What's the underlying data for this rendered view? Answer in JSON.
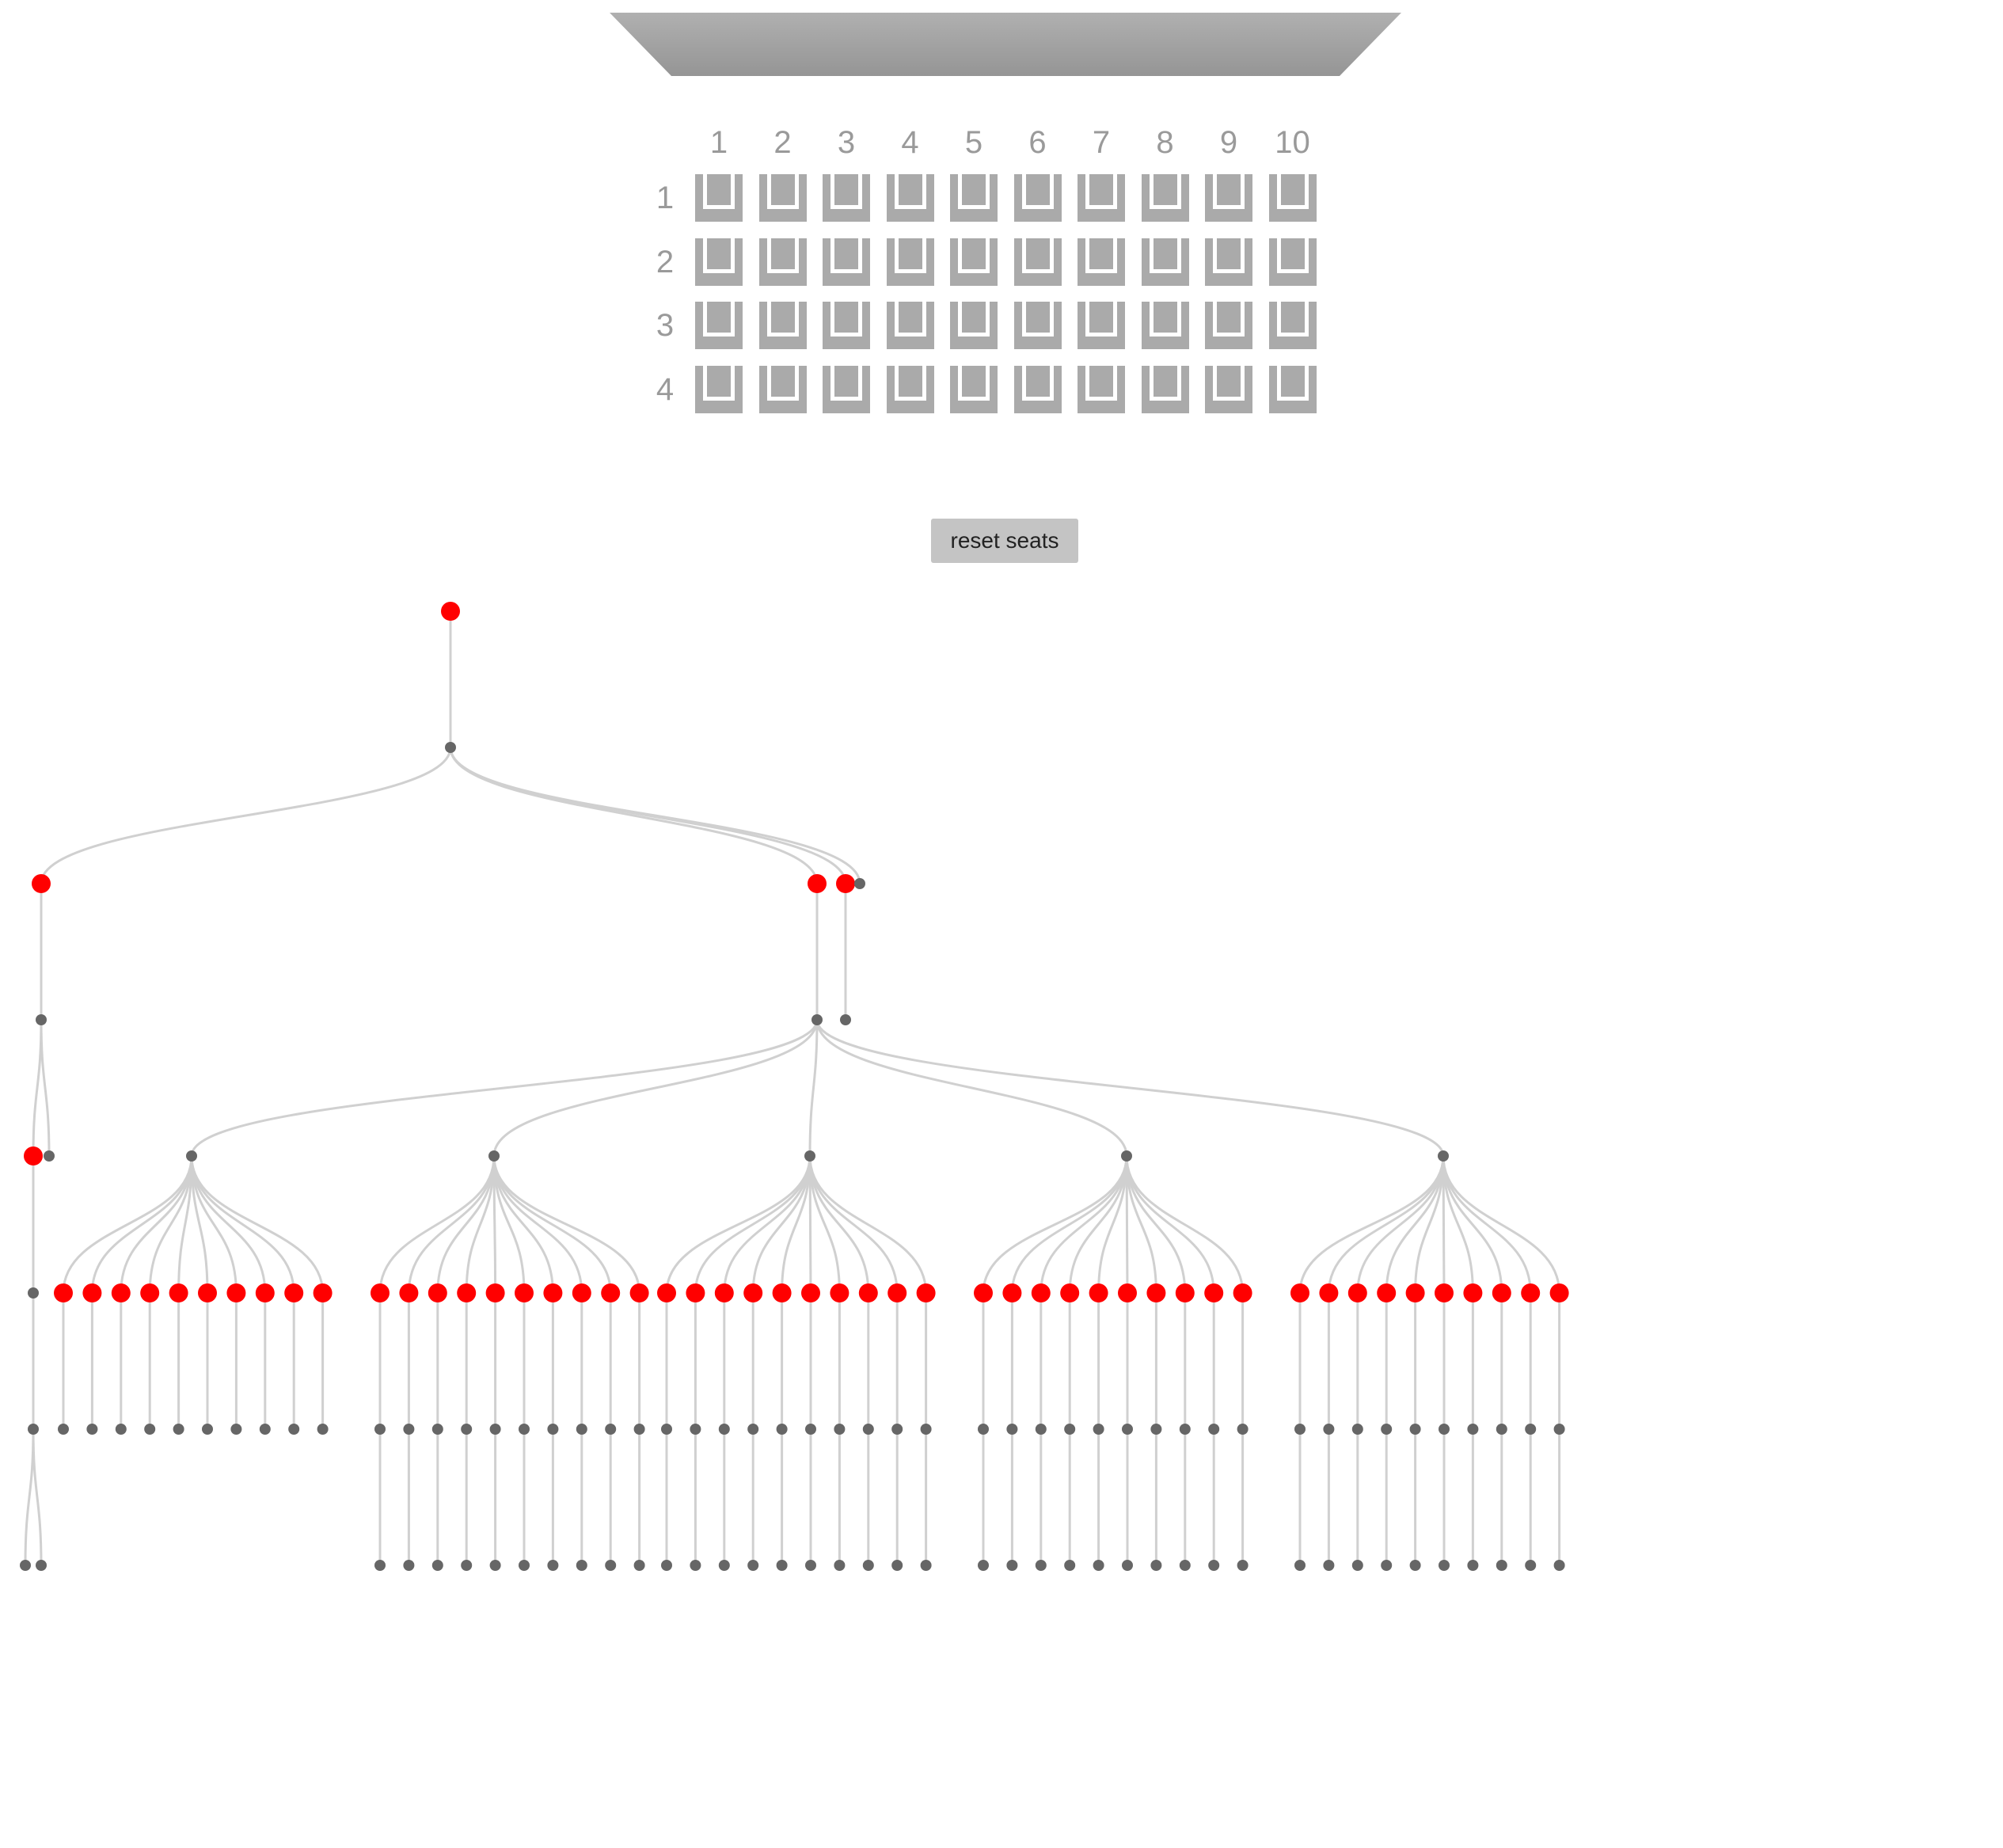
{
  "seating": {
    "columns": [
      "1",
      "2",
      "3",
      "4",
      "5",
      "6",
      "7",
      "8",
      "9",
      "10"
    ],
    "rows": [
      "1",
      "2",
      "3",
      "4"
    ],
    "seat_color": "#aaaaaa",
    "screen_color": "#9e9e9e"
  },
  "controls": {
    "reset_label": "reset seats"
  },
  "tree": {
    "colors": {
      "active_node": "#ff0000",
      "inactive_node": "#666666",
      "link": "#d0d0d0"
    },
    "root": {
      "active": true,
      "children": [
        {
          "active": false,
          "children": [
            {
              "active": true,
              "children": [
                {
                  "active": false,
                  "children": [
                    {
                      "active": true,
                      "children": [
                        {
                          "active": false,
                          "children": [
                            {
                              "active": false,
                              "children": [
                                {
                                  "active": false,
                                  "children": []
                                },
                                {
                                  "active": false,
                                  "children": []
                                }
                              ]
                            }
                          ]
                        }
                      ]
                    },
                    {
                      "active": false,
                      "children": []
                    }
                  ]
                }
              ]
            },
            {
              "active": true,
              "children": [
                {
                  "active": false,
                  "children": [
                    {
                      "active": false,
                      "group": 0
                    },
                    {
                      "active": false,
                      "group": 1
                    },
                    {
                      "active": false,
                      "group": 2
                    },
                    {
                      "active": false,
                      "group": 3
                    },
                    {
                      "active": false,
                      "group": 4
                    }
                  ]
                }
              ]
            },
            {
              "active": true,
              "children": [
                {
                  "active": false,
                  "children": []
                }
              ]
            },
            {
              "active": false,
              "children": []
            }
          ]
        }
      ]
    },
    "groups": [
      {
        "leaves_active": [
          true,
          true,
          true,
          true,
          true,
          true,
          true,
          true,
          true,
          true
        ],
        "grandchildren": [
          false,
          false,
          false,
          false,
          false,
          false,
          false,
          false,
          false,
          false
        ]
      },
      {
        "leaves_active": [
          true,
          true,
          true,
          true,
          true,
          true,
          true,
          true,
          true,
          true
        ],
        "grandchildren": [
          true,
          true,
          true,
          true,
          true,
          true,
          true,
          true,
          true,
          true
        ]
      },
      {
        "leaves_active": [
          true,
          true,
          true,
          true,
          true,
          true,
          true,
          true,
          true,
          true
        ],
        "grandchildren": [
          true,
          true,
          true,
          true,
          true,
          true,
          true,
          true,
          true,
          true
        ]
      },
      {
        "leaves_active": [
          true,
          true,
          true,
          true,
          true,
          true,
          true,
          true,
          true,
          true
        ],
        "grandchildren": [
          true,
          true,
          true,
          true,
          true,
          true,
          true,
          true,
          true,
          true
        ]
      },
      {
        "leaves_active": [
          true,
          true,
          true,
          true,
          true,
          true,
          true,
          true,
          true,
          true
        ],
        "grandchildren": [
          true,
          true,
          true,
          true,
          true,
          true,
          true,
          true,
          true,
          true
        ]
      }
    ]
  }
}
